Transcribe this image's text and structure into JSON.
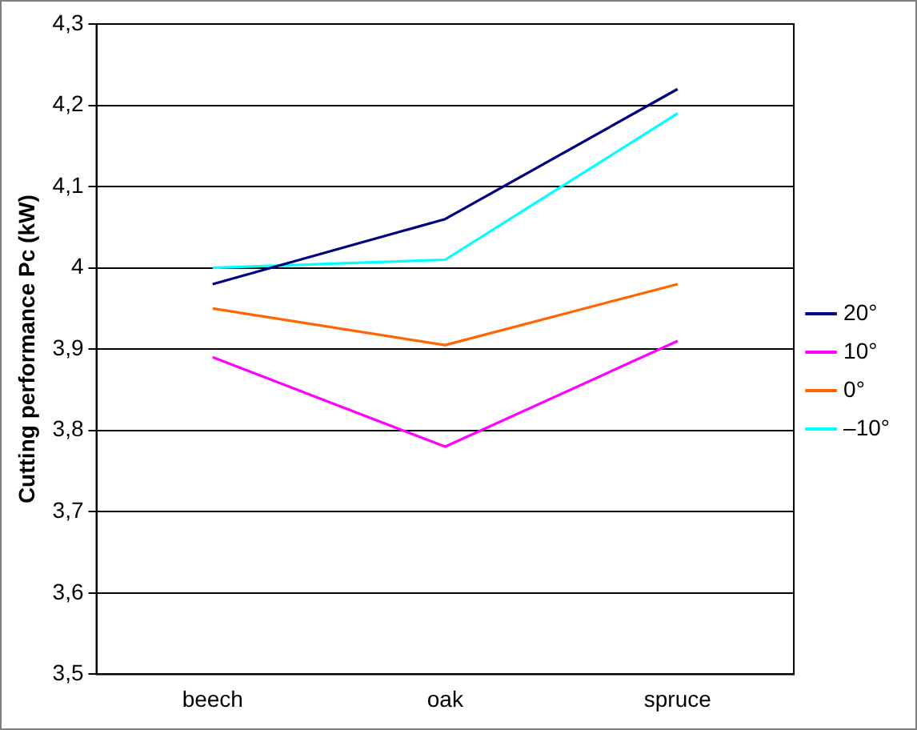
{
  "chart_data": {
    "type": "line",
    "ylabel": "Cutting performance Pc (kW)",
    "categories": [
      "beech",
      "oak",
      "spruce"
    ],
    "series": [
      {
        "name": "20°",
        "color": "#000080",
        "values": [
          3.98,
          4.06,
          4.22
        ]
      },
      {
        "name": "10°",
        "color": "#ff00ff",
        "values": [
          3.89,
          3.78,
          3.91
        ]
      },
      {
        "name": "0°",
        "color": "#ff6600",
        "values": [
          3.95,
          3.905,
          3.98
        ]
      },
      {
        "name": "–10°",
        "color": "#00ffff",
        "values": [
          4.0,
          4.01,
          4.19
        ]
      }
    ],
    "ylim": [
      3.5,
      4.3
    ],
    "yticks": [
      {
        "value": 3.5,
        "label": "3,5"
      },
      {
        "value": 3.6,
        "label": "3,6"
      },
      {
        "value": 3.7,
        "label": "3,7"
      },
      {
        "value": 3.8,
        "label": "3,8"
      },
      {
        "value": 3.9,
        "label": "3,9"
      },
      4,
      {
        "value": 4.1,
        "label": "4,1"
      },
      {
        "value": 4.2,
        "label": "4,2"
      },
      {
        "value": 4.3,
        "label": "4,3"
      }
    ],
    "grid": "y",
    "legend": "right",
    "marker": "none",
    "line_style": "solid"
  }
}
